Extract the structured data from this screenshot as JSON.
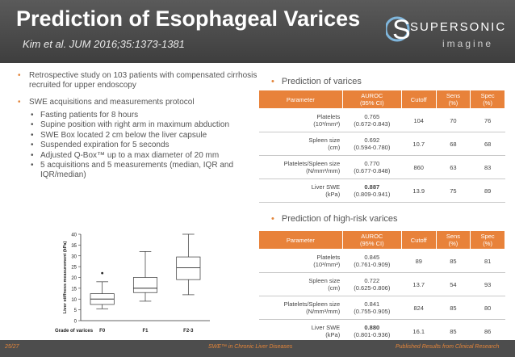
{
  "header": {
    "title": "Prediction of Esophageal Varices",
    "subtitle": "Kim et al. JUM 2016;35:1373-1381",
    "logo_top": "SUPERSONIC",
    "logo_bottom": "imagine"
  },
  "left": {
    "bullet1": "Retrospective study on 103 patients with compensated cirrhosis recruited for upper endoscopy",
    "bullet2": "SWE acquisitions and measurements protocol",
    "sub": [
      "Fasting patients for 8 hours",
      "Supine position with right arm in maximum abduction",
      "SWE Box located 2 cm below the liver capsule",
      "Suspended expiration for 5 seconds",
      "Adjusted Q-Box™ up to a max diameter of 20 mm",
      "5 acquisitions and 5 measurements (median, IQR and IQR/median)"
    ]
  },
  "chart_data": {
    "type": "box",
    "ylabel": "Liver stiffness measurement (kPa)",
    "xlabel": "Grade of varices",
    "categories": [
      "F0",
      "F1",
      "F2-3"
    ],
    "ylim": [
      0,
      40
    ],
    "yticks": [
      0,
      5,
      10,
      15,
      20,
      25,
      30,
      35,
      40
    ],
    "boxes": [
      {
        "min": 5.5,
        "q1": 7.5,
        "median": 10,
        "q3": 12.5,
        "max": 18,
        "outliers": [
          22
        ]
      },
      {
        "min": 9,
        "q1": 13,
        "median": 15,
        "q3": 20,
        "max": 32,
        "outliers": []
      },
      {
        "min": 12,
        "q1": 19,
        "median": 24.5,
        "q3": 29.5,
        "max": 40,
        "outliers": []
      }
    ]
  },
  "table1": {
    "heading": "Prediction of varices",
    "headers": [
      "Parameter",
      "AUROC\n(95% CI)",
      "Cutoff",
      "Sens\n(%)",
      "Spec\n(%)"
    ],
    "rows": [
      {
        "param": "Platelets\n(10³/mm³)",
        "auroc": "0.765\n(0.672-0.843)",
        "cutoff": "104",
        "sens": "70",
        "spec": "76",
        "bold": false
      },
      {
        "param": "Spleen size\n(cm)",
        "auroc": "0.692\n(0.594-0.780)",
        "cutoff": "10.7",
        "sens": "68",
        "spec": "68",
        "bold": false
      },
      {
        "param": "Platelets/Spleen size\n(N/mm³/mm)",
        "auroc": "0.770\n(0.677-0.848)",
        "cutoff": "860",
        "sens": "63",
        "spec": "83",
        "bold": false
      },
      {
        "param": "Liver SWE\n(kPa)",
        "auroc": "0.887\n(0.809-0.941)",
        "cutoff": "13.9",
        "sens": "75",
        "spec": "89",
        "bold": true
      }
    ]
  },
  "table2": {
    "heading": "Prediction of high-risk varices",
    "headers": [
      "Parameter",
      "AUROC\n(95% CI)",
      "Cutoff",
      "Sens\n(%)",
      "Spec\n(%)"
    ],
    "rows": [
      {
        "param": "Platelets\n(10³/mm³)",
        "auroc": "0.845\n(0.761-0.909)",
        "cutoff": "89",
        "sens": "85",
        "spec": "81",
        "bold": false
      },
      {
        "param": "Spleen size\n(cm)",
        "auroc": "0.722\n(0.625-0.806)",
        "cutoff": "13.7",
        "sens": "54",
        "spec": "93",
        "bold": false
      },
      {
        "param": "Platelets/Spleen size\n(N/mm³/mm)",
        "auroc": "0.841\n(0.755-0.905)",
        "cutoff": "824",
        "sens": "85",
        "spec": "80",
        "bold": false
      },
      {
        "param": "Liver SWE\n(kPa)",
        "auroc": "0.880\n(0.801-0.936)",
        "cutoff": "16.1",
        "sens": "85",
        "spec": "86",
        "bold": true
      }
    ]
  },
  "footer": {
    "page": "25/27",
    "center": "SWE™ in Chronic Liver Diseases",
    "right": "Published Results from Clinical Research"
  },
  "colors": {
    "accent": "#e8823a",
    "header": "#4a4a4a",
    "logo_blue": "#7fb6dc"
  }
}
